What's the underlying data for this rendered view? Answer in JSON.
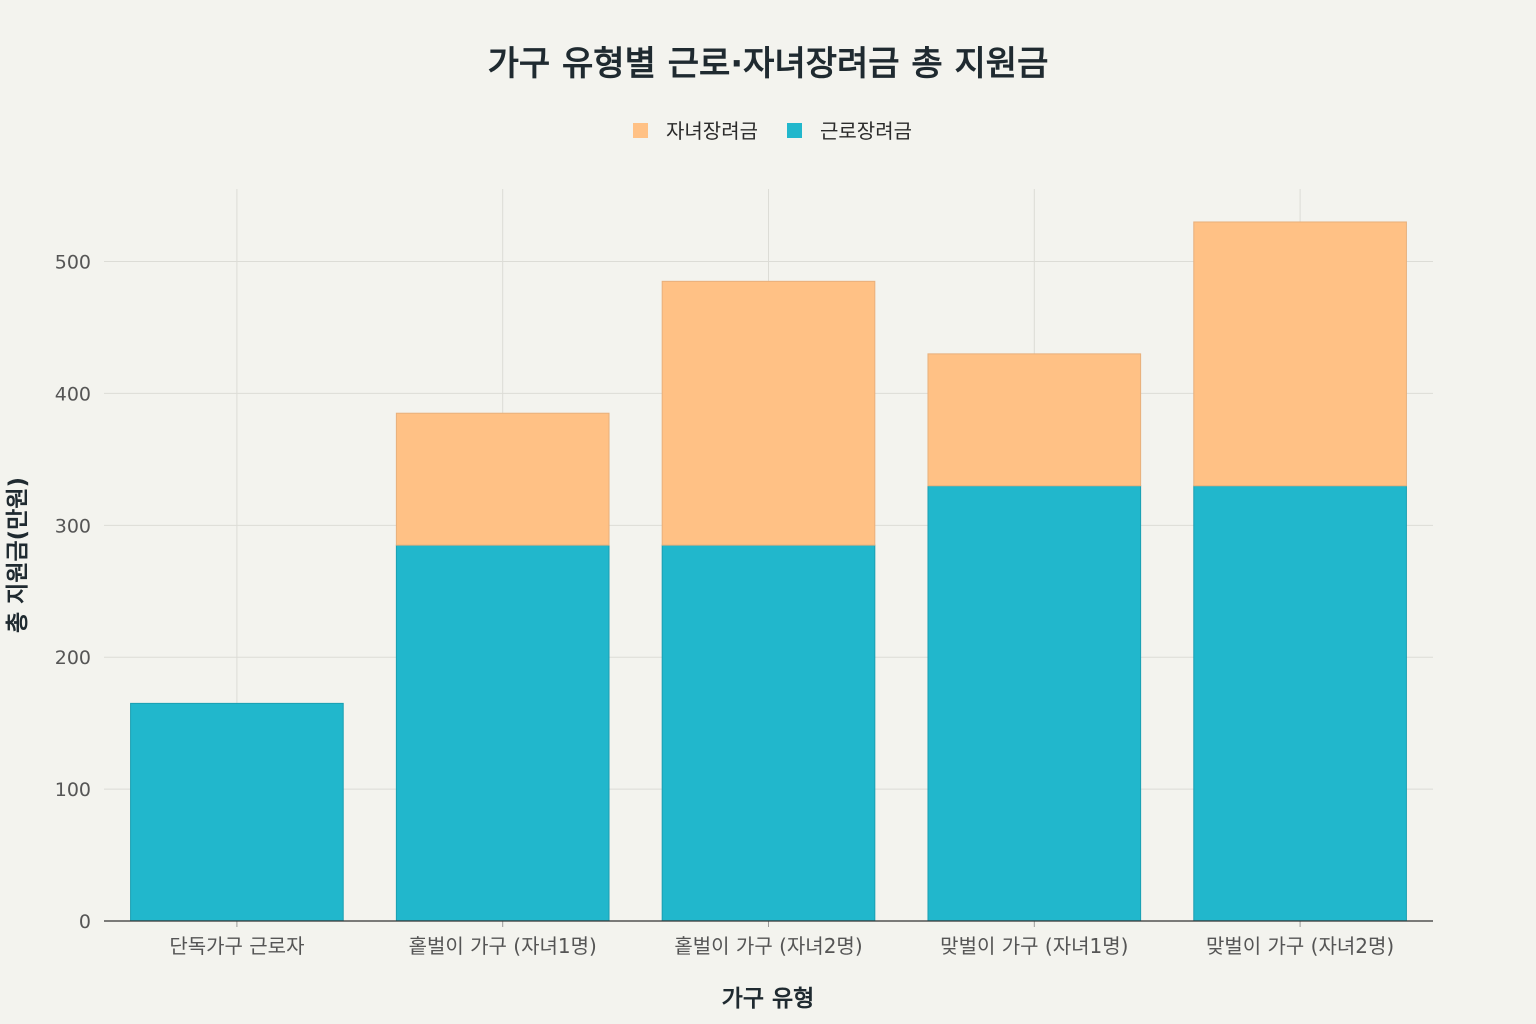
{
  "chart_data": {
    "type": "bar",
    "stacked": true,
    "title": "가구 유형별 근로·자녀장려금 총 지원금",
    "xlabel": "가구 유형",
    "ylabel": "총 지원금(만원)",
    "categories": [
      "단독가구 근로자",
      "홑벌이 가구 (자녀1명)",
      "홑벌이 가구 (자녀2명)",
      "맞벌이 가구 (자녀1명)",
      "맞벌이 가구 (자녀2명)"
    ],
    "series": [
      {
        "name": "근로장려금",
        "values": [
          165,
          285,
          285,
          330,
          330
        ],
        "color": "#21b7cc"
      },
      {
        "name": "자녀장려금",
        "values": [
          0,
          100,
          200,
          100,
          200
        ],
        "color": "#ffc185"
      }
    ],
    "legend_order": [
      "자녀장려금",
      "근로장려금"
    ],
    "ylim": [
      0,
      555
    ],
    "yticks": [
      0,
      100,
      200,
      300,
      400,
      500
    ],
    "grid": true,
    "legend_position": "top-center"
  }
}
